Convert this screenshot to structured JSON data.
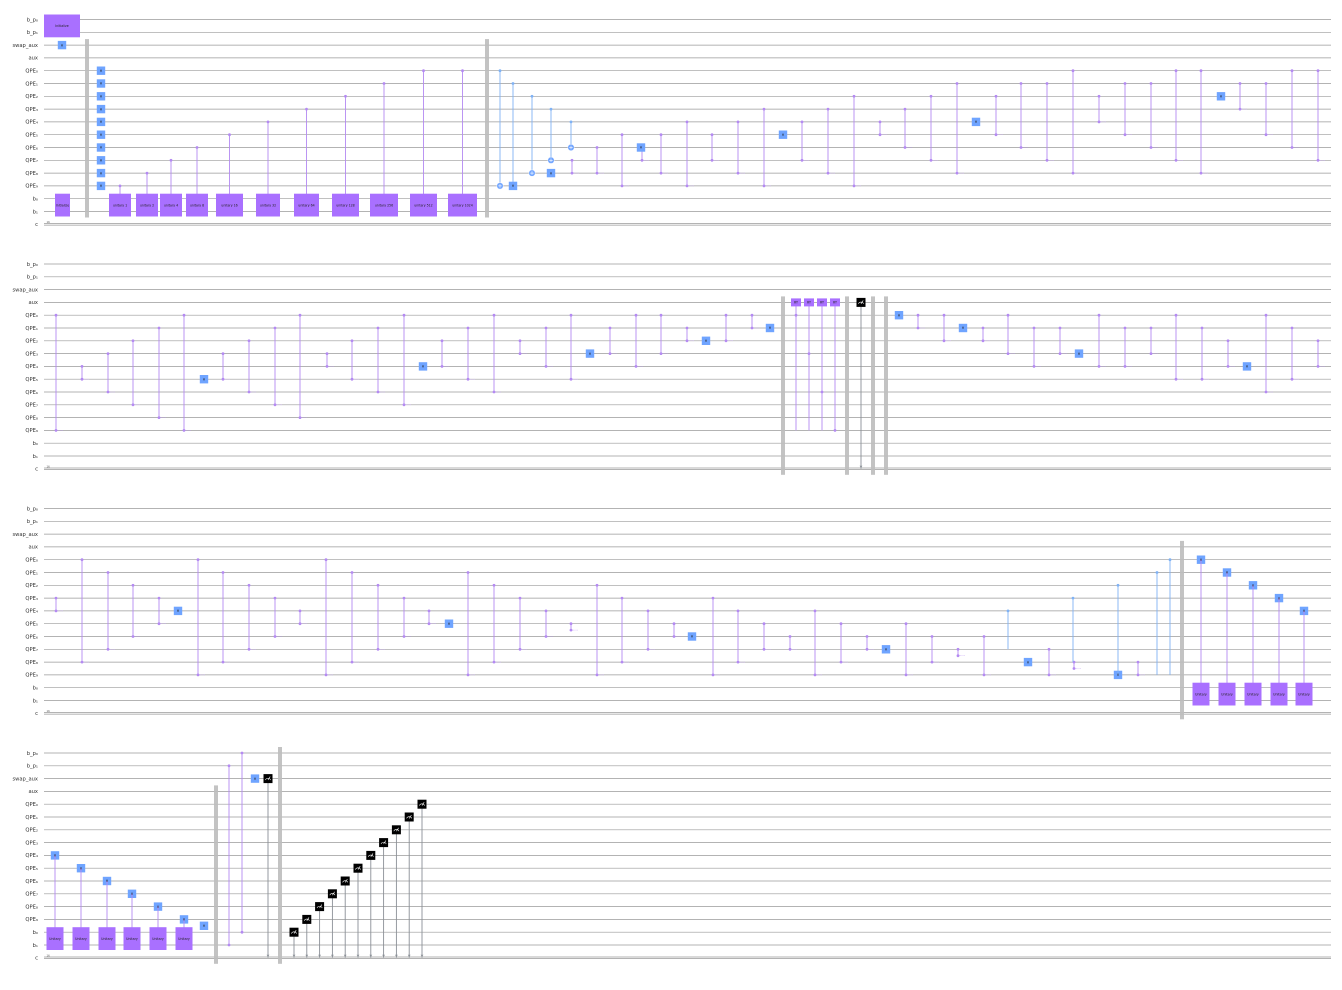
{
  "qubit_labels": [
    "b_p",
    "b_p",
    "swap_aux",
    "aux",
    "QPE_0",
    "QPE_1",
    "QPE_2",
    "QPE_3",
    "QPE_4",
    "QPE_5",
    "QPE_6",
    "QPE_7",
    "QPE_8",
    "QPE_9",
    "b",
    "b",
    "c"
  ],
  "qubit_labels_display": [
    "b_p₀",
    "b_p₁",
    "swap_aux",
    "aux",
    "QPE₀",
    "QPE₁",
    "QPE₂",
    "QPE₃",
    "QPE₄",
    "QPE₅",
    "QPE₆",
    "QPE₇",
    "QPE₈",
    "QPE₉",
    "b₀",
    "b₁",
    "c"
  ],
  "classical_register_size": "16",
  "gates": {
    "hadamard": "H",
    "initialize": "Initialize",
    "unitary_prefix": "unitary",
    "unitary_powers": [
      "1",
      "2",
      "4",
      "8",
      "16",
      "32",
      "64",
      "128",
      "256",
      "512",
      "1024"
    ],
    "controlled_rotation": "RY",
    "measure": "measure",
    "unitary_inverse": "Unitary"
  },
  "colors": {
    "wire": "#9a9a9a",
    "controlled_phase": "#b48af2",
    "hadamard": "#6fa4ff",
    "cnot": "#6fa4ff",
    "unitary_block": "#a970ff",
    "barrier": "#bdbdbd",
    "measure": "#000000"
  }
}
